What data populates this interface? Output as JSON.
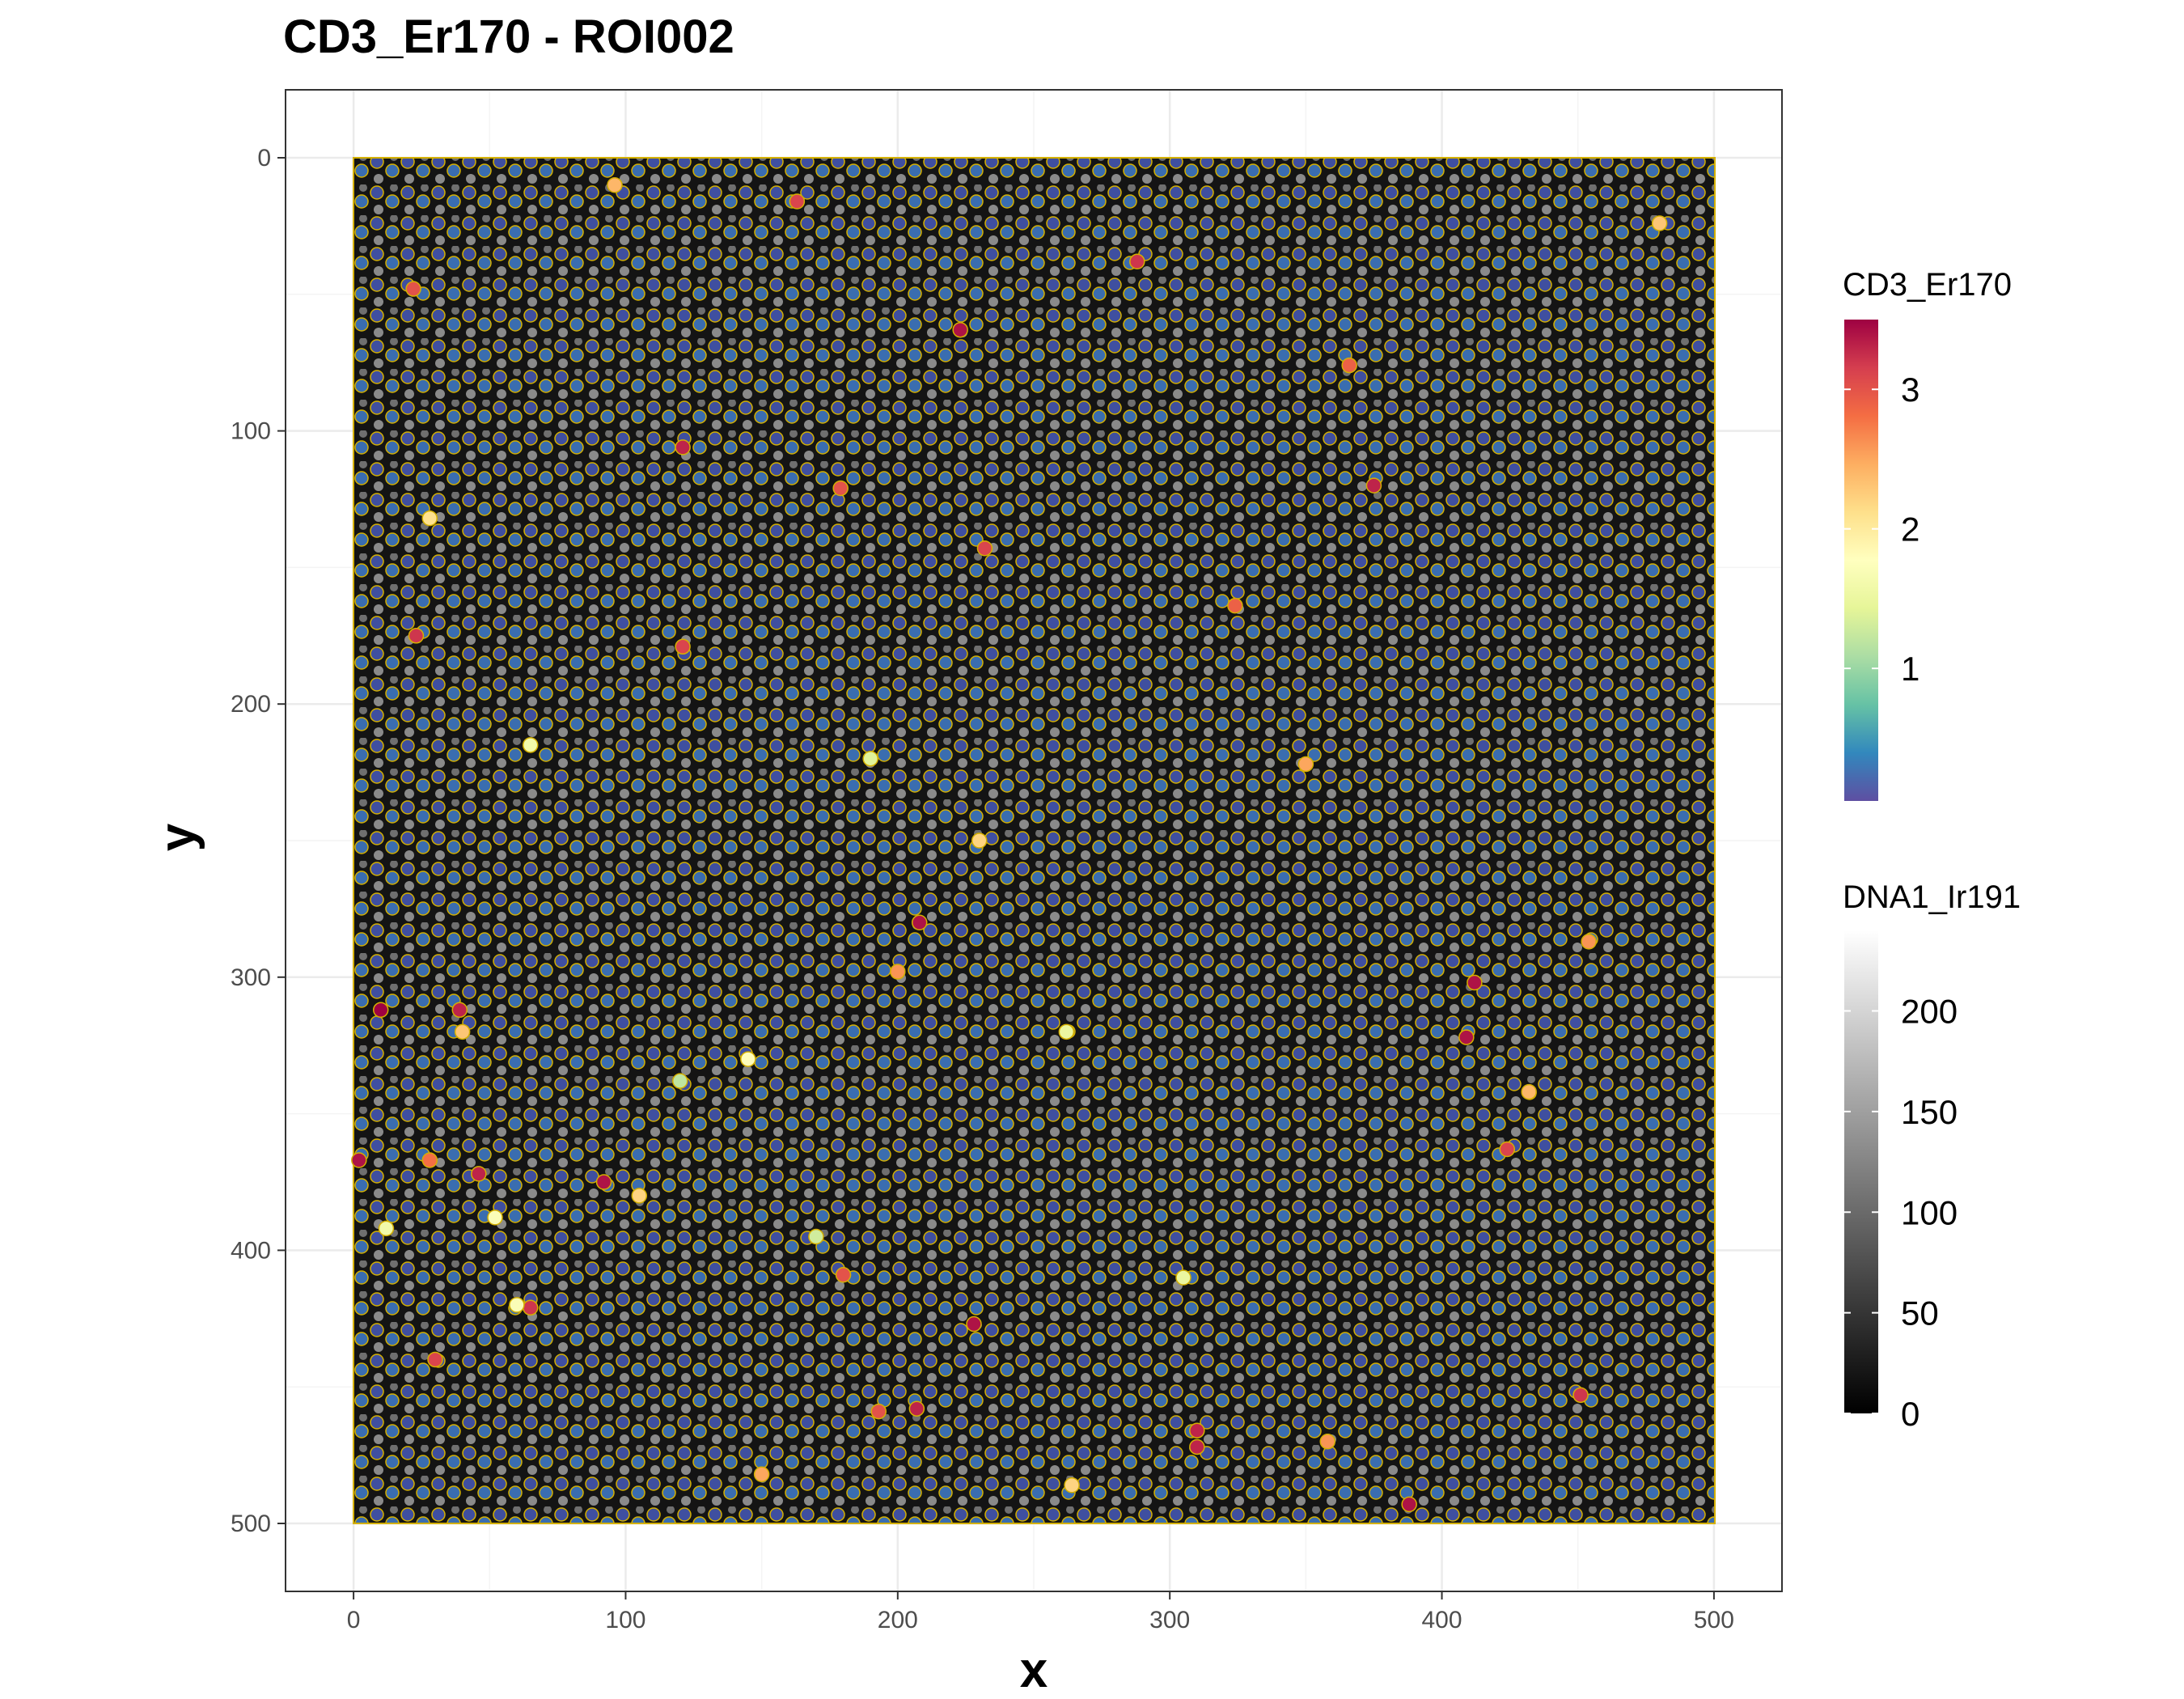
{
  "chart_data": {
    "type": "scatter",
    "title": "CD3_Er170 - ROI002",
    "xlabel": "x",
    "ylabel": "y",
    "xlim": [
      -25,
      525
    ],
    "ylim": [
      0,
      500
    ],
    "y_reversed": true,
    "x_ticks": [
      0,
      100,
      200,
      300,
      400,
      500
    ],
    "y_ticks": [
      0,
      100,
      200,
      300,
      400,
      500
    ],
    "grid": true,
    "background_image": {
      "channel": "DNA1_Ir191",
      "colormap": "grayscale",
      "range": [
        0,
        240
      ],
      "extent": {
        "x": [
          0,
          500
        ],
        "y": [
          0,
          500
        ]
      }
    },
    "cell_outline_color": "#d4b000",
    "points_color_by": "CD3_Er170",
    "legends": [
      {
        "name": "CD3_Er170",
        "type": "colorbar",
        "range": [
          0.05,
          3.5
        ],
        "ticks": [
          1,
          2,
          3
        ],
        "colors": [
          "#5e4fa2",
          "#3288bd",
          "#66c2a5",
          "#abdda4",
          "#e6f598",
          "#ffffbf",
          "#fee08b",
          "#fdae61",
          "#f46d43",
          "#d53e4f",
          "#9e0142"
        ]
      },
      {
        "name": "DNA1_Ir191",
        "type": "colorbar",
        "range": [
          0,
          240
        ],
        "ticks": [
          0,
          50,
          100,
          150,
          200
        ],
        "colors": [
          "#000000",
          "#ffffff"
        ]
      }
    ],
    "points": [
      {
        "x": 163,
        "y": 16,
        "v": 3.1
      },
      {
        "x": 22,
        "y": 48,
        "v": 3.0
      },
      {
        "x": 288,
        "y": 38,
        "v": 3.2
      },
      {
        "x": 223,
        "y": 63,
        "v": 3.4
      },
      {
        "x": 121,
        "y": 106,
        "v": 3.3
      },
      {
        "x": 179,
        "y": 121,
        "v": 3.0
      },
      {
        "x": 232,
        "y": 143,
        "v": 3.1
      },
      {
        "x": 23,
        "y": 175,
        "v": 3.2
      },
      {
        "x": 121,
        "y": 179,
        "v": 3.1
      },
      {
        "x": 324,
        "y": 164,
        "v": 2.9
      },
      {
        "x": 366,
        "y": 76,
        "v": 2.9
      },
      {
        "x": 375,
        "y": 120,
        "v": 3.3
      },
      {
        "x": 208,
        "y": 280,
        "v": 3.4
      },
      {
        "x": 39,
        "y": 312,
        "v": 3.3
      },
      {
        "x": 10,
        "y": 312,
        "v": 3.5
      },
      {
        "x": 412,
        "y": 302,
        "v": 3.4
      },
      {
        "x": 409,
        "y": 322,
        "v": 3.4
      },
      {
        "x": 2,
        "y": 367,
        "v": 3.4
      },
      {
        "x": 46,
        "y": 372,
        "v": 3.3
      },
      {
        "x": 92,
        "y": 375,
        "v": 3.4
      },
      {
        "x": 28,
        "y": 367,
        "v": 2.8
      },
      {
        "x": 65,
        "y": 421,
        "v": 3.2
      },
      {
        "x": 228,
        "y": 427,
        "v": 3.4
      },
      {
        "x": 180,
        "y": 409,
        "v": 3.0
      },
      {
        "x": 207,
        "y": 458,
        "v": 3.3
      },
      {
        "x": 310,
        "y": 472,
        "v": 3.3
      },
      {
        "x": 388,
        "y": 493,
        "v": 3.4
      },
      {
        "x": 451,
        "y": 453,
        "v": 3.2
      },
      {
        "x": 193,
        "y": 459,
        "v": 3.0
      },
      {
        "x": 30,
        "y": 440,
        "v": 3.1
      },
      {
        "x": 424,
        "y": 363,
        "v": 3.1
      },
      {
        "x": 310,
        "y": 466,
        "v": 3.3
      },
      {
        "x": 96,
        "y": 10,
        "v": 2.4
      },
      {
        "x": 40,
        "y": 320,
        "v": 2.3
      },
      {
        "x": 200,
        "y": 298,
        "v": 2.6
      },
      {
        "x": 264,
        "y": 486,
        "v": 2.2
      },
      {
        "x": 150,
        "y": 482,
        "v": 2.5
      },
      {
        "x": 105,
        "y": 380,
        "v": 2.2
      },
      {
        "x": 432,
        "y": 342,
        "v": 2.4
      },
      {
        "x": 454,
        "y": 287,
        "v": 2.6
      },
      {
        "x": 358,
        "y": 470,
        "v": 2.6
      },
      {
        "x": 28,
        "y": 132,
        "v": 2.1
      },
      {
        "x": 350,
        "y": 222,
        "v": 2.5
      },
      {
        "x": 480,
        "y": 24,
        "v": 2.3
      },
      {
        "x": 230,
        "y": 250,
        "v": 2.2
      },
      {
        "x": 145,
        "y": 330,
        "v": 1.8
      },
      {
        "x": 12,
        "y": 392,
        "v": 1.6
      },
      {
        "x": 60,
        "y": 420,
        "v": 1.7
      },
      {
        "x": 305,
        "y": 410,
        "v": 1.5
      },
      {
        "x": 190,
        "y": 220,
        "v": 1.4
      },
      {
        "x": 65,
        "y": 215,
        "v": 1.6
      },
      {
        "x": 262,
        "y": 320,
        "v": 1.5
      },
      {
        "x": 170,
        "y": 395,
        "v": 1.3
      },
      {
        "x": 52,
        "y": 388,
        "v": 1.7
      },
      {
        "x": 120,
        "y": 338,
        "v": 1.2
      }
    ]
  }
}
